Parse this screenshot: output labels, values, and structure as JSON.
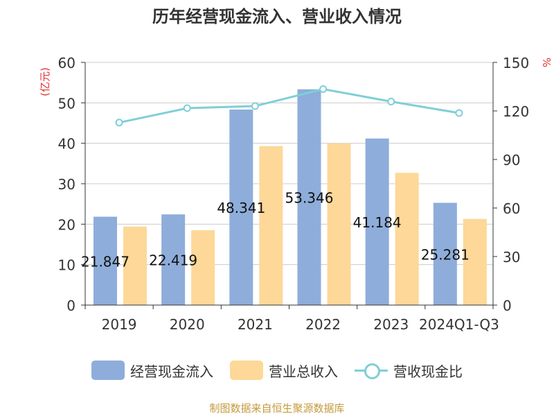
{
  "title": "历年经营现金流入、营业收入情况",
  "source": "制图数据来自恒生聚源数据库",
  "colors": {
    "cash": "#8eadda",
    "revenue": "#fdd898",
    "ratio": "#7fcfd6",
    "unit": "#e03030"
  },
  "chart_data": {
    "type": "bar",
    "categories": [
      "2019",
      "2020",
      "2021",
      "2022",
      "2023",
      "2024Q1-Q3"
    ],
    "series": [
      {
        "name": "经营现金流入",
        "type": "bar",
        "axis": "left",
        "values": [
          21.847,
          22.419,
          48.341,
          53.346,
          41.184,
          25.281
        ],
        "labels": [
          "21.847",
          "22.419",
          "48.341",
          "53.346",
          "41.184",
          "25.281"
        ]
      },
      {
        "name": "营业总收入",
        "type": "bar",
        "axis": "left",
        "values": [
          19.4,
          18.5,
          39.3,
          40.0,
          32.7,
          21.3
        ]
      },
      {
        "name": "营收现金比",
        "type": "line",
        "axis": "right",
        "values": [
          112.8,
          121.7,
          123.0,
          133.5,
          125.8,
          118.7
        ]
      }
    ],
    "y_left": {
      "label": "(亿元)",
      "min": 0,
      "max": 60,
      "ticks": [
        "0",
        "10",
        "20",
        "30",
        "40",
        "50",
        "60"
      ]
    },
    "y_right": {
      "label": "%",
      "min": 0,
      "max": 150,
      "ticks": [
        "0",
        "30",
        "60",
        "90",
        "120",
        "150"
      ]
    },
    "grid": true,
    "legend_position": "bottom"
  }
}
